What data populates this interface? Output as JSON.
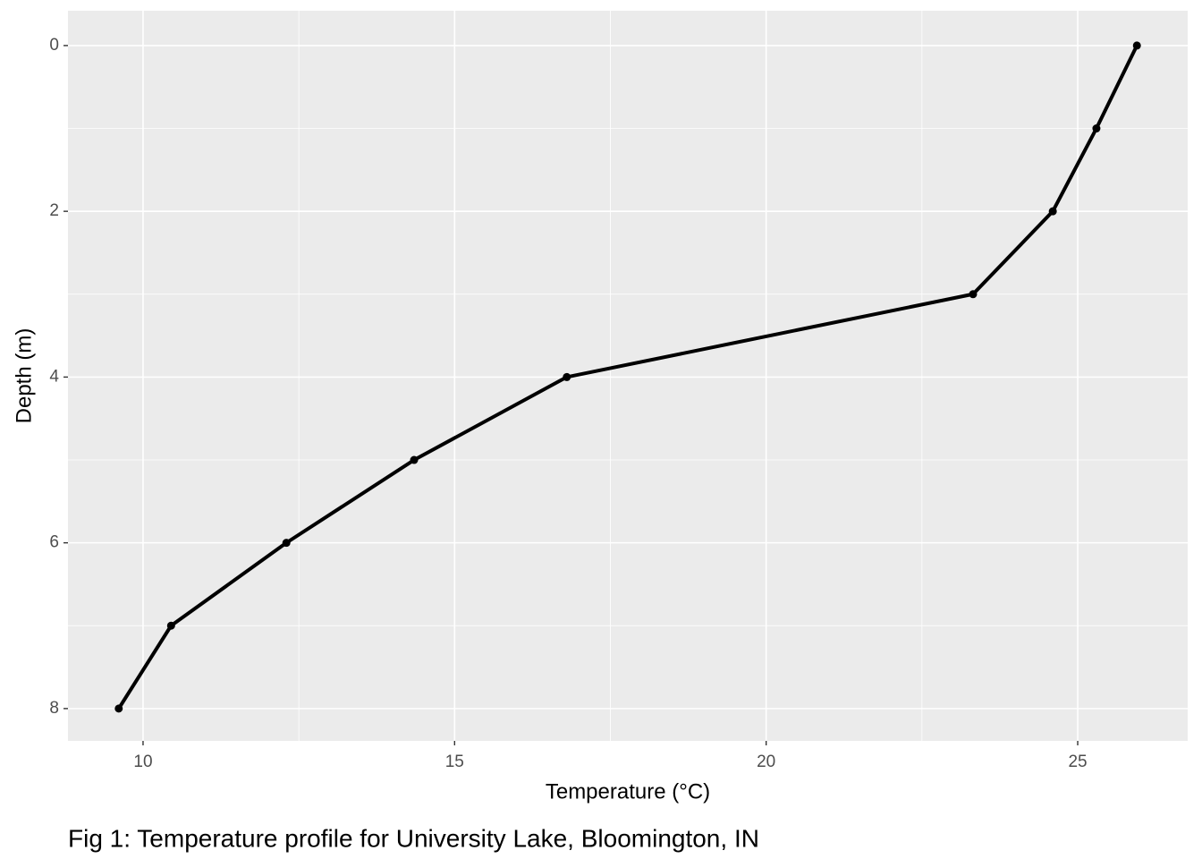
{
  "chart_data": {
    "type": "line",
    "x_label": "Temperature (°C)",
    "y_label": "Depth (m)",
    "caption": "Fig 1: Temperature profile for University Lake, Bloomington, IN",
    "x": [
      25.95,
      25.3,
      24.6,
      23.32,
      16.8,
      14.35,
      12.3,
      10.45,
      9.61
    ],
    "values": [
      0,
      1,
      2,
      3,
      4,
      5,
      6,
      7,
      8
    ],
    "color": "#000000",
    "xlim": [
      8.795,
      26.765
    ],
    "xticks": [
      10,
      15,
      20,
      25
    ],
    "ylim": [
      -0.42,
      8.39
    ],
    "yticks": [
      0,
      2,
      4,
      6,
      8
    ],
    "y_reversed": true,
    "grid": true
  }
}
